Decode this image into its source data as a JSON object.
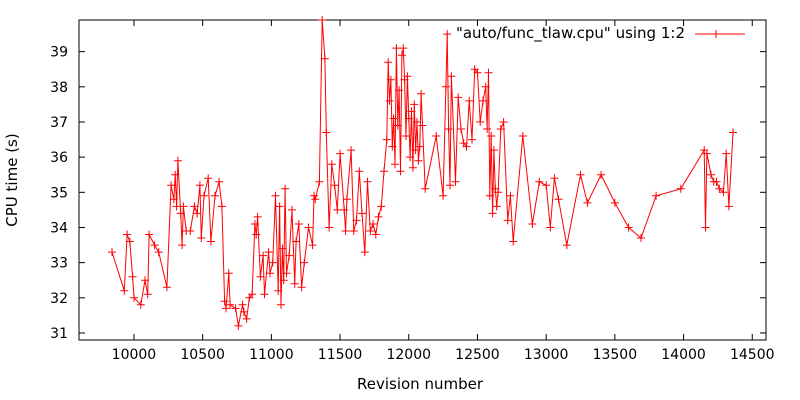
{
  "chart_data": {
    "type": "line",
    "title": "",
    "xlabel": "Revision number",
    "ylabel": "CPU time (s)",
    "xlim": [
      9600,
      14600
    ],
    "ylim": [
      30.8,
      39.9
    ],
    "xticks": [
      10000,
      10500,
      11000,
      11500,
      12000,
      12500,
      13000,
      13500,
      14000,
      14500
    ],
    "yticks": [
      31,
      32,
      33,
      34,
      35,
      36,
      37,
      38,
      39
    ],
    "grid": false,
    "legend_position": "top-right",
    "colors": {
      "series": "#ff0000",
      "axes": "#000000"
    },
    "series": [
      {
        "name": "\"auto/func_tlaw.cpu\" using 1:2",
        "marker": "plus",
        "points": [
          [
            9840,
            33.3
          ],
          [
            9930,
            32.2
          ],
          [
            9950,
            33.8
          ],
          [
            9970,
            33.6
          ],
          [
            9990,
            32.6
          ],
          [
            10000,
            32.0
          ],
          [
            10050,
            31.8
          ],
          [
            10080,
            32.5
          ],
          [
            10100,
            32.1
          ],
          [
            10110,
            33.8
          ],
          [
            10150,
            33.5
          ],
          [
            10180,
            33.3
          ],
          [
            10240,
            32.3
          ],
          [
            10270,
            35.2
          ],
          [
            10290,
            34.8
          ],
          [
            10300,
            35.5
          ],
          [
            10310,
            34.6
          ],
          [
            10320,
            35.9
          ],
          [
            10340,
            34.4
          ],
          [
            10350,
            33.5
          ],
          [
            10360,
            34.6
          ],
          [
            10380,
            33.9
          ],
          [
            10410,
            33.9
          ],
          [
            10440,
            34.6
          ],
          [
            10460,
            34.4
          ],
          [
            10480,
            35.2
          ],
          [
            10490,
            33.7
          ],
          [
            10510,
            34.9
          ],
          [
            10540,
            35.4
          ],
          [
            10560,
            33.6
          ],
          [
            10590,
            34.9
          ],
          [
            10620,
            35.3
          ],
          [
            10640,
            34.6
          ],
          [
            10660,
            31.9
          ],
          [
            10670,
            31.7
          ],
          [
            10690,
            32.7
          ],
          [
            10700,
            31.8
          ],
          [
            10740,
            31.7
          ],
          [
            10760,
            31.2
          ],
          [
            10790,
            31.8
          ],
          [
            10800,
            31.6
          ],
          [
            10820,
            31.4
          ],
          [
            10840,
            32.0
          ],
          [
            10860,
            32.1
          ],
          [
            10880,
            34.1
          ],
          [
            10890,
            33.8
          ],
          [
            10900,
            34.3
          ],
          [
            10920,
            32.6
          ],
          [
            10940,
            33.2
          ],
          [
            10950,
            32.1
          ],
          [
            10980,
            33.3
          ],
          [
            10990,
            32.7
          ],
          [
            11010,
            33.0
          ],
          [
            11030,
            34.9
          ],
          [
            11050,
            32.2
          ],
          [
            11060,
            34.6
          ],
          [
            11070,
            31.8
          ],
          [
            11080,
            33.4
          ],
          [
            11090,
            32.5
          ],
          [
            11100,
            35.1
          ],
          [
            11110,
            32.7
          ],
          [
            11130,
            33.2
          ],
          [
            11150,
            34.5
          ],
          [
            11170,
            32.4
          ],
          [
            11180,
            33.6
          ],
          [
            11200,
            34.1
          ],
          [
            11220,
            32.3
          ],
          [
            11240,
            33.0
          ],
          [
            11270,
            34.0
          ],
          [
            11300,
            33.5
          ],
          [
            11310,
            34.9
          ],
          [
            11320,
            34.8
          ],
          [
            11350,
            35.3
          ],
          [
            11370,
            39.9
          ],
          [
            11390,
            38.8
          ],
          [
            11400,
            36.7
          ],
          [
            11420,
            34.0
          ],
          [
            11440,
            35.8
          ],
          [
            11460,
            35.2
          ],
          [
            11480,
            34.5
          ],
          [
            11500,
            36.1
          ],
          [
            11530,
            34.5
          ],
          [
            11540,
            33.9
          ],
          [
            11550,
            34.8
          ],
          [
            11580,
            36.2
          ],
          [
            11600,
            33.9
          ],
          [
            11620,
            34.2
          ],
          [
            11640,
            35.6
          ],
          [
            11660,
            34.4
          ],
          [
            11680,
            33.3
          ],
          [
            11700,
            35.3
          ],
          [
            11720,
            33.9
          ],
          [
            11740,
            34.1
          ],
          [
            11760,
            33.8
          ],
          [
            11780,
            34.3
          ],
          [
            11800,
            34.6
          ],
          [
            11820,
            35.6
          ],
          [
            11840,
            36.5
          ],
          [
            11850,
            38.7
          ],
          [
            11860,
            37.6
          ],
          [
            11870,
            38.2
          ],
          [
            11880,
            36.3
          ],
          [
            11890,
            37.1
          ],
          [
            11900,
            35.8
          ],
          [
            11910,
            39.1
          ],
          [
            11920,
            36.9
          ],
          [
            11930,
            37.9
          ],
          [
            11940,
            35.6
          ],
          [
            11950,
            38.9
          ],
          [
            11960,
            39.1
          ],
          [
            11970,
            38.2
          ],
          [
            11980,
            36.6
          ],
          [
            11990,
            38.3
          ],
          [
            12000,
            37.1
          ],
          [
            12010,
            36.0
          ],
          [
            12020,
            37.3
          ],
          [
            12030,
            35.7
          ],
          [
            12040,
            37.5
          ],
          [
            12050,
            36.2
          ],
          [
            12060,
            37.0
          ],
          [
            12070,
            35.9
          ],
          [
            12080,
            36.3
          ],
          [
            12090,
            37.8
          ],
          [
            12100,
            36.9
          ],
          [
            12120,
            35.1
          ],
          [
            12200,
            36.6
          ],
          [
            12250,
            34.9
          ],
          [
            12270,
            38.0
          ],
          [
            12280,
            39.5
          ],
          [
            12290,
            36.8
          ],
          [
            12300,
            35.2
          ],
          [
            12310,
            38.3
          ],
          [
            12340,
            35.3
          ],
          [
            12360,
            37.7
          ],
          [
            12380,
            36.8
          ],
          [
            12400,
            36.4
          ],
          [
            12420,
            36.3
          ],
          [
            12440,
            37.6
          ],
          [
            12460,
            36.5
          ],
          [
            12480,
            38.5
          ],
          [
            12500,
            38.4
          ],
          [
            12520,
            37.0
          ],
          [
            12540,
            37.6
          ],
          [
            12560,
            38.0
          ],
          [
            12570,
            36.8
          ],
          [
            12580,
            38.4
          ],
          [
            12590,
            34.9
          ],
          [
            12600,
            36.6
          ],
          [
            12610,
            34.4
          ],
          [
            12620,
            36.2
          ],
          [
            12630,
            35.1
          ],
          [
            12640,
            34.6
          ],
          [
            12650,
            35.0
          ],
          [
            12670,
            36.8
          ],
          [
            12690,
            37.0
          ],
          [
            12720,
            34.2
          ],
          [
            12740,
            34.9
          ],
          [
            12760,
            33.6
          ],
          [
            12830,
            36.6
          ],
          [
            12900,
            34.1
          ],
          [
            12950,
            35.3
          ],
          [
            13000,
            35.2
          ],
          [
            13030,
            34.0
          ],
          [
            13060,
            35.4
          ],
          [
            13090,
            34.8
          ],
          [
            13150,
            33.5
          ],
          [
            13250,
            35.5
          ],
          [
            13300,
            34.7
          ],
          [
            13400,
            35.5
          ],
          [
            13500,
            34.7
          ],
          [
            13600,
            34.0
          ],
          [
            13690,
            33.7
          ],
          [
            13800,
            34.9
          ],
          [
            13980,
            35.1
          ],
          [
            14150,
            36.2
          ],
          [
            14160,
            34.0
          ],
          [
            14170,
            36.1
          ],
          [
            14200,
            35.5
          ],
          [
            14220,
            35.3
          ],
          [
            14240,
            35.3
          ],
          [
            14260,
            35.1
          ],
          [
            14290,
            35.0
          ],
          [
            14310,
            36.1
          ],
          [
            14330,
            34.6
          ],
          [
            14360,
            36.7
          ]
        ]
      }
    ]
  }
}
